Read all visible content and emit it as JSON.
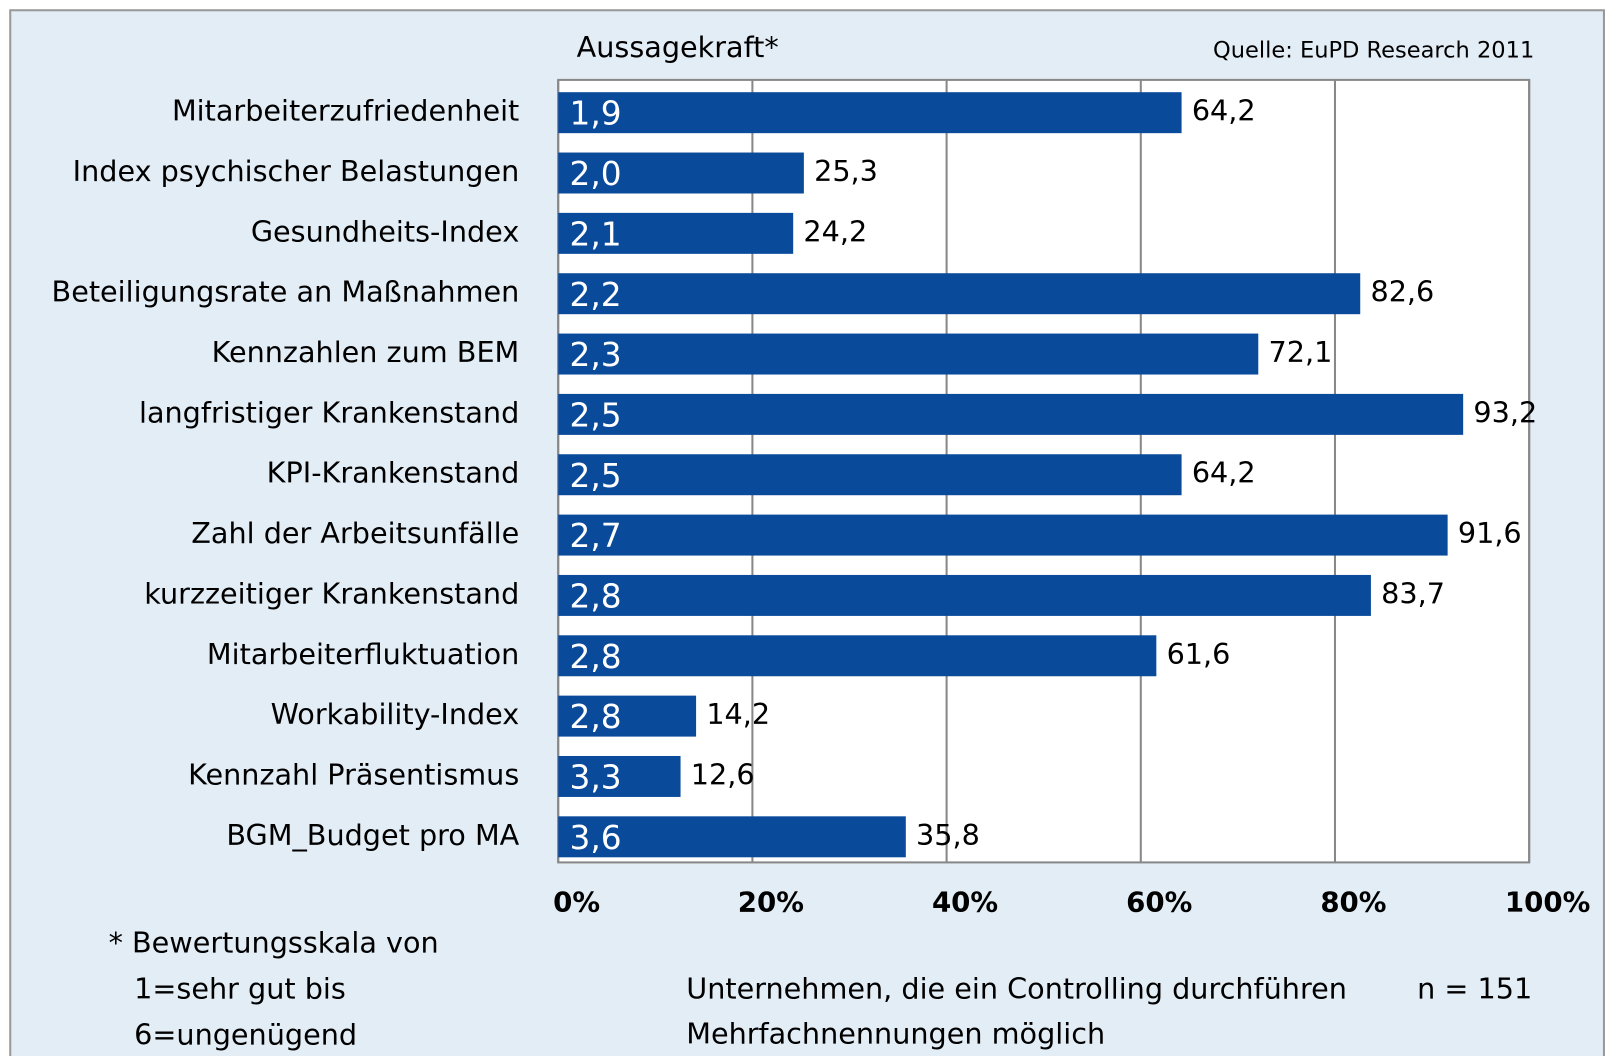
{
  "chart_data": {
    "type": "bar",
    "orientation": "horizontal",
    "title": "Aussagekraft*",
    "source": "Quelle: EuPD Research 2011",
    "categories": [
      "Mitarbeiterzufriedenheit",
      "Index psychischer Belastungen",
      "Gesundheits-Index",
      "Beteiligungsrate an Maßnahmen",
      "Kennzahlen zum BEM",
      "langfristiger Krankenstand",
      "KPI-Krankenstand",
      "Zahl der Arbeitsunfälle",
      "kurzzeitiger Krankenstand",
      "Mitarbeiterfluktuation",
      "Workability-Index",
      "Kennzahl Präsentismus",
      "BGM_Budget pro MA"
    ],
    "values": [
      64.2,
      25.3,
      24.2,
      82.6,
      72.1,
      93.2,
      64.2,
      91.6,
      83.7,
      61.6,
      14.2,
      12.6,
      35.8
    ],
    "value_labels": [
      "64,2",
      "25,3",
      "24,2",
      "82,6",
      "72,1",
      "93,2",
      "64,2",
      "91,6",
      "83,7",
      "61,6",
      "14,2",
      "12,6",
      "35,8"
    ],
    "scores": [
      "1,9",
      "2,0",
      "2,1",
      "2,2",
      "2,3",
      "2,5",
      "2,5",
      "2,7",
      "2,8",
      "2,8",
      "2,8",
      "3,3",
      "3,6"
    ],
    "color": "#0a4a9b",
    "xlim": [
      0,
      100
    ],
    "xticks": [
      {
        "value": 0,
        "label": "0%"
      },
      {
        "value": 20,
        "label": "20%"
      },
      {
        "value": 40,
        "label": "40%"
      },
      {
        "value": 60,
        "label": "60%"
      },
      {
        "value": 80,
        "label": "80%"
      },
      {
        "value": 100,
        "label": "100%"
      }
    ],
    "grid": true,
    "footnote": [
      "* Bewertungsskala von",
      "1=sehr gut bis",
      "6=ungenügend"
    ],
    "notes": [
      "Unternehmen, die ein Controlling durchführen",
      "n = 151",
      "Mehrfachnennungen möglich"
    ]
  }
}
